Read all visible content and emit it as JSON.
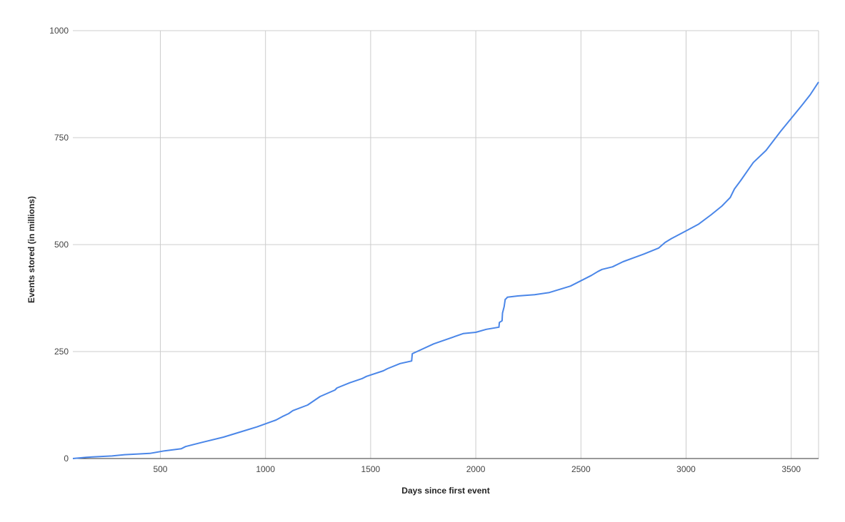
{
  "chart_data": {
    "type": "line",
    "title": "",
    "xlabel": "Days since first event",
    "ylabel": "Events stored (in millions)",
    "xlim": [
      84,
      3630
    ],
    "ylim": [
      0,
      1000
    ],
    "x_ticks": [
      500,
      1000,
      1500,
      2000,
      2500,
      3000,
      3500
    ],
    "y_ticks": [
      0,
      250,
      500,
      750,
      1000
    ],
    "grid": true,
    "legend": "none",
    "colors": {
      "line": "#4a86e8",
      "grid": "#cccccc",
      "axis": "#333333"
    },
    "series": [
      {
        "x": [
          84,
          150,
          270,
          330,
          450,
          520,
          600,
          620,
          700,
          800,
          900,
          960,
          1050,
          1080,
          1110,
          1130,
          1200,
          1260,
          1330,
          1340,
          1400,
          1460,
          1480,
          1560,
          1580,
          1640,
          1695,
          1698,
          1800,
          1940,
          2000,
          2050,
          2110,
          2112,
          2125,
          2127,
          2135,
          2140,
          2145,
          2150,
          2200,
          2280,
          2350,
          2450,
          2550,
          2580,
          2600,
          2650,
          2700,
          2800,
          2870,
          2900,
          2930,
          3000,
          3060,
          3120,
          3170,
          3210,
          3230,
          3260,
          3300,
          3320,
          3380,
          3450,
          3500,
          3550,
          3590,
          3630
        ],
        "y": [
          0,
          3,
          6,
          9,
          12,
          18,
          23,
          28,
          38,
          50,
          65,
          74,
          90,
          98,
          105,
          112,
          125,
          145,
          160,
          165,
          177,
          187,
          192,
          205,
          210,
          222,
          228,
          245,
          268,
          292,
          295,
          302,
          307,
          318,
          322,
          340,
          355,
          372,
          374,
          377,
          380,
          383,
          388,
          403,
          428,
          437,
          442,
          448,
          460,
          478,
          492,
          505,
          514,
          532,
          548,
          570,
          590,
          610,
          630,
          650,
          678,
          692,
          720,
          765,
          795,
          825,
          850,
          880
        ]
      }
    ]
  }
}
